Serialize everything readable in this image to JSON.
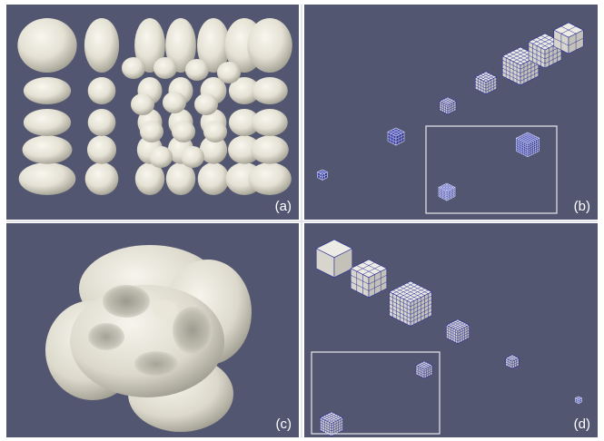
{
  "panels": {
    "a": {
      "label": "(a)"
    },
    "b": {
      "label": "(b)"
    },
    "c": {
      "label": "(c)"
    },
    "d": {
      "label": "(d)"
    }
  },
  "colors": {
    "background": "#535670",
    "surface": "#e9e6d9",
    "surface_shadow": "#a9a69a",
    "mesh_blue": "#2a2f9a",
    "frame": "#e8e8ee",
    "separator": "#e3e4ea"
  }
}
